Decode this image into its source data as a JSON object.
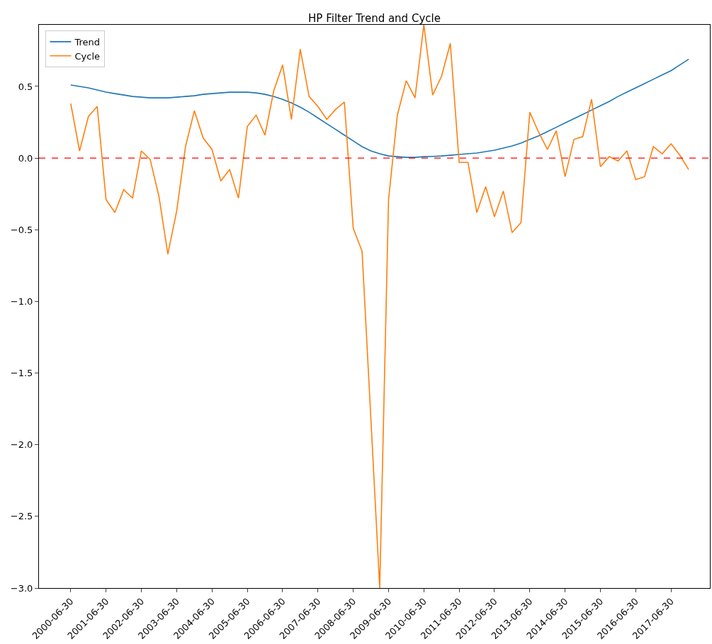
{
  "chart_data": {
    "type": "line",
    "title": "HP Filter Trend and Cycle",
    "categories": [
      "2000-06-30",
      null,
      null,
      null,
      "2001-06-30",
      null,
      null,
      null,
      "2002-06-30",
      null,
      null,
      null,
      "2003-06-30",
      null,
      null,
      null,
      "2004-06-30",
      null,
      null,
      null,
      "2005-06-30",
      null,
      null,
      null,
      "2006-06-30",
      null,
      null,
      null,
      "2007-06-30",
      null,
      null,
      null,
      "2008-06-30",
      null,
      null,
      null,
      "2009-06-30",
      null,
      null,
      null,
      "2010-06-30",
      null,
      null,
      null,
      "2011-06-30",
      null,
      null,
      null,
      "2012-06-30",
      null,
      null,
      null,
      "2013-06-30",
      null,
      null,
      null,
      "2014-06-30",
      null,
      null,
      null,
      "2015-06-30",
      null,
      null,
      null,
      "2016-06-30",
      null,
      null,
      null,
      "2017-06-30",
      null,
      null
    ],
    "series": [
      {
        "name": "Trend",
        "color": "#1f77b4",
        "values": [
          0.51,
          0.5,
          0.49,
          0.475,
          0.46,
          0.45,
          0.44,
          0.43,
          0.425,
          0.42,
          0.42,
          0.42,
          0.425,
          0.43,
          0.435,
          0.445,
          0.45,
          0.455,
          0.46,
          0.46,
          0.46,
          0.455,
          0.445,
          0.43,
          0.41,
          0.385,
          0.355,
          0.32,
          0.28,
          0.24,
          0.2,
          0.16,
          0.12,
          0.08,
          0.05,
          0.03,
          0.015,
          0.01,
          0.005,
          0.005,
          0.01,
          0.012,
          0.015,
          0.02,
          0.025,
          0.03,
          0.035,
          0.045,
          0.055,
          0.07,
          0.085,
          0.105,
          0.13,
          0.155,
          0.185,
          0.215,
          0.245,
          0.275,
          0.305,
          0.335,
          0.365,
          0.395,
          0.43,
          0.46,
          0.49,
          0.52,
          0.55,
          0.58,
          0.61,
          0.65,
          0.69
        ]
      },
      {
        "name": "Cycle",
        "color": "#ff7f0e",
        "values": [
          0.38,
          0.05,
          0.29,
          0.36,
          -0.29,
          -0.38,
          -0.22,
          -0.28,
          0.05,
          -0.01,
          -0.27,
          -0.67,
          -0.37,
          0.08,
          0.33,
          0.14,
          0.06,
          -0.16,
          -0.08,
          -0.28,
          0.22,
          0.3,
          0.16,
          0.47,
          0.65,
          0.27,
          0.76,
          0.43,
          0.36,
          0.27,
          0.34,
          0.39,
          -0.49,
          -0.65,
          -1.82,
          -3.0,
          -0.29,
          0.3,
          0.54,
          0.42,
          0.93,
          0.44,
          0.57,
          0.8,
          -0.03,
          -0.03,
          -0.38,
          -0.2,
          -0.41,
          -0.23,
          -0.52,
          -0.45,
          0.32,
          0.18,
          0.06,
          0.19,
          -0.13,
          0.13,
          0.15,
          0.41,
          -0.06,
          0.01,
          -0.02,
          0.05,
          -0.15,
          -0.13,
          0.08,
          0.03,
          0.1,
          0.02,
          -0.08
        ]
      }
    ],
    "ylim": [
      -3.0,
      0.93
    ],
    "yticks": [
      {
        "value": -3.0,
        "label": "−3.0"
      },
      {
        "value": -2.5,
        "label": "−2.5"
      },
      {
        "value": -2.0,
        "label": "−2.0"
      },
      {
        "value": -1.5,
        "label": "−1.5"
      },
      {
        "value": -1.0,
        "label": "−1.0"
      },
      {
        "value": -0.5,
        "label": "−0.5"
      },
      {
        "value": 0.0,
        "label": "0.0"
      },
      {
        "value": 0.5,
        "label": "0.5"
      }
    ],
    "ref_lines": [
      {
        "axis": "y",
        "value": 0,
        "color": "#ff0000",
        "line_style": "dashed"
      }
    ],
    "grid": false,
    "legend": "top left",
    "line_style": "solid",
    "marker": "none"
  }
}
